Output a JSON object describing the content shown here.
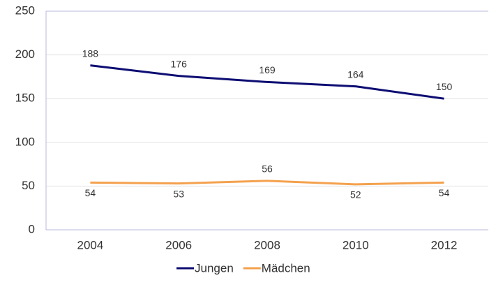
{
  "chart_data": {
    "type": "line",
    "categories": [
      "2004",
      "2006",
      "2008",
      "2010",
      "2012"
    ],
    "series": [
      {
        "name": "Jungen",
        "color": "#0d0d73",
        "values": [
          188,
          176,
          169,
          164,
          150
        ]
      },
      {
        "name": "Mädchen",
        "color": "#f4a14e",
        "values": [
          54,
          53,
          56,
          52,
          54
        ]
      }
    ],
    "ylim": [
      0,
      250
    ],
    "yticks": [
      0,
      50,
      100,
      150,
      200,
      250
    ],
    "grid": true,
    "legend": "bottom"
  }
}
